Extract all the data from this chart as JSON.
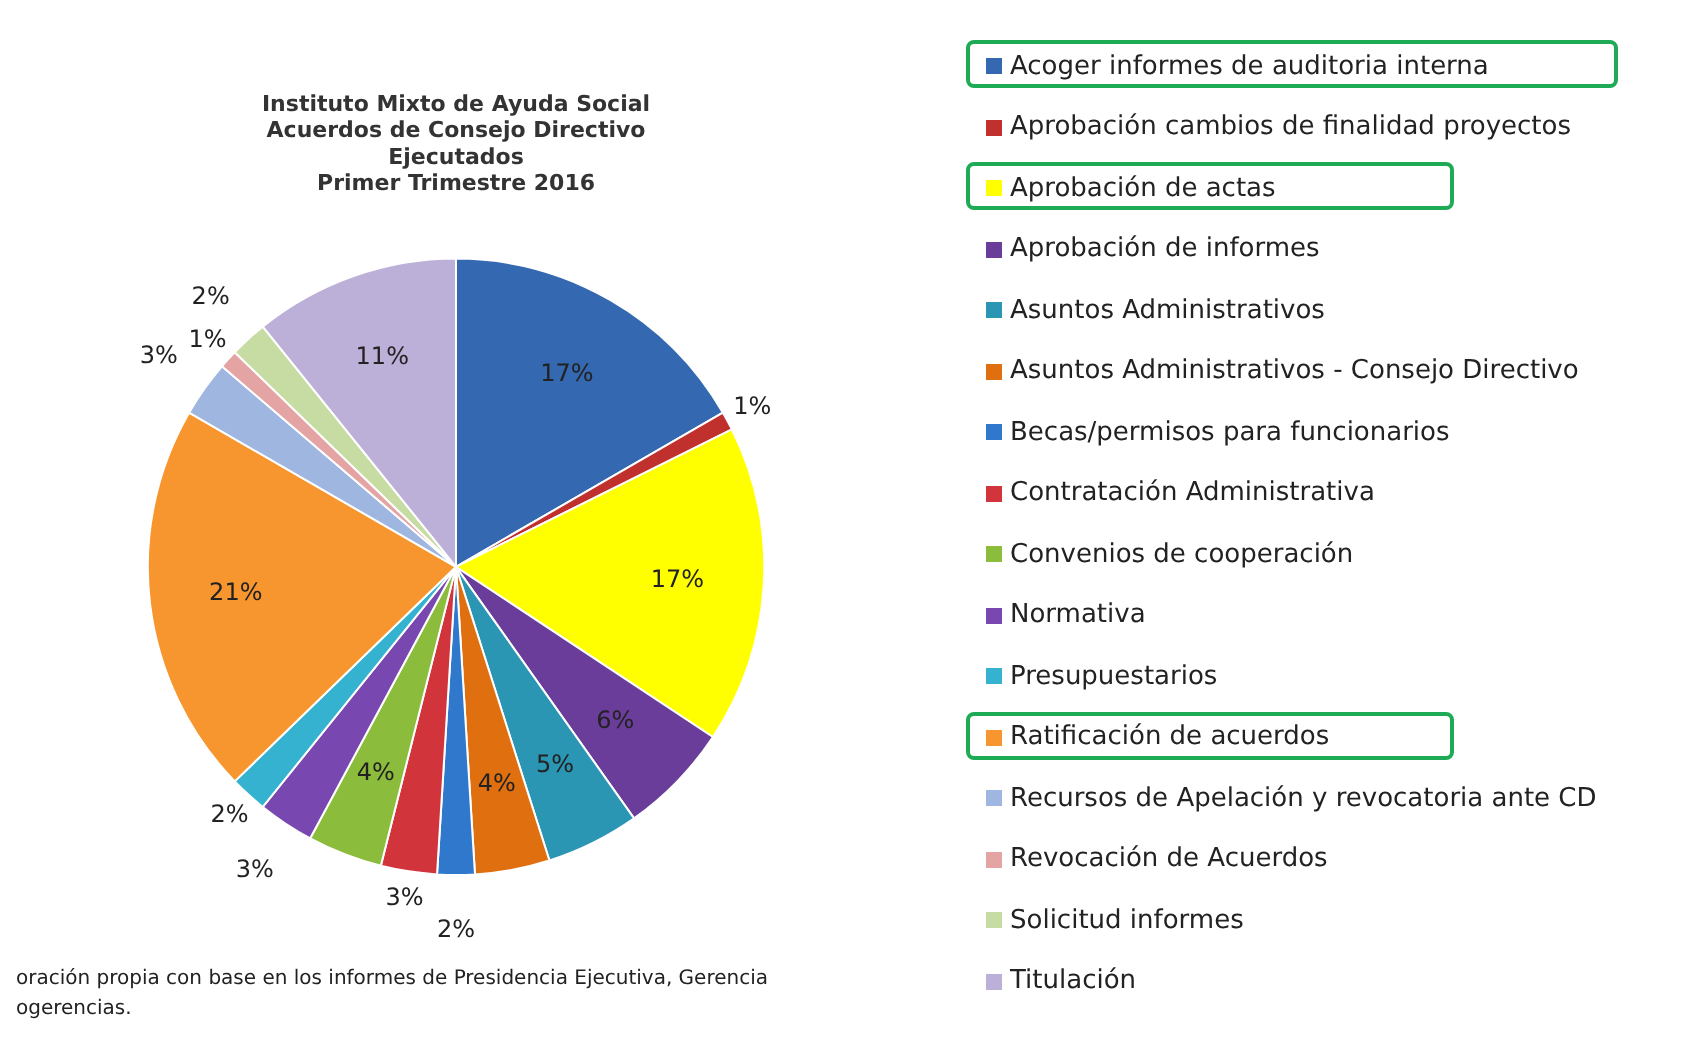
{
  "chart_data": {
    "type": "pie",
    "title": "Instituto Mixto de Ayuda Social\nAcuerdos de Consejo Directivo\nEjecutados\nPrimer Trimestre 2016",
    "categories": [
      "Acoger informes de auditoria interna",
      "Aprobación cambios de finalidad proyectos",
      "Aprobación de actas",
      "Aprobación de informes",
      "Asuntos Administrativos",
      "Asuntos Administrativos - Consejo Directivo",
      "Becas/permisos para funcionarios",
      "Contratación Administrativa",
      "Convenios de cooperación",
      "Normativa",
      "Presupuestarios",
      "Ratificación de acuerdos",
      "Recursos de Apelación y revocatoria ante CD",
      "Revocación de Acuerdos",
      "Solicitud informes",
      "Titulación"
    ],
    "values": [
      17,
      1,
      17,
      6,
      5,
      4,
      2,
      3,
      4,
      3,
      2,
      21,
      3,
      1,
      2,
      11
    ],
    "colors": [
      "#3468b0",
      "#c0302c",
      "#ffff00",
      "#6a3d9a",
      "#2b96b3",
      "#e0700f",
      "#2f78cc",
      "#d2343c",
      "#8cbc3c",
      "#7848b0",
      "#35b2d0",
      "#f7962f",
      "#9fb6e0",
      "#e4a4a4",
      "#c6dca2",
      "#bdb0d8"
    ],
    "value_labels": [
      "17%",
      "1%",
      "17%",
      "6%",
      "5%",
      "4%",
      "2%",
      "3%",
      "4%",
      "3%",
      "2%",
      "21%",
      "3%",
      "1%",
      "2%",
      "11%"
    ],
    "legend": "right",
    "annotations": [
      "oración propia con base en los informes de Presidencia Ejecutiva, Gerencia",
      "ogerencias."
    ]
  }
}
